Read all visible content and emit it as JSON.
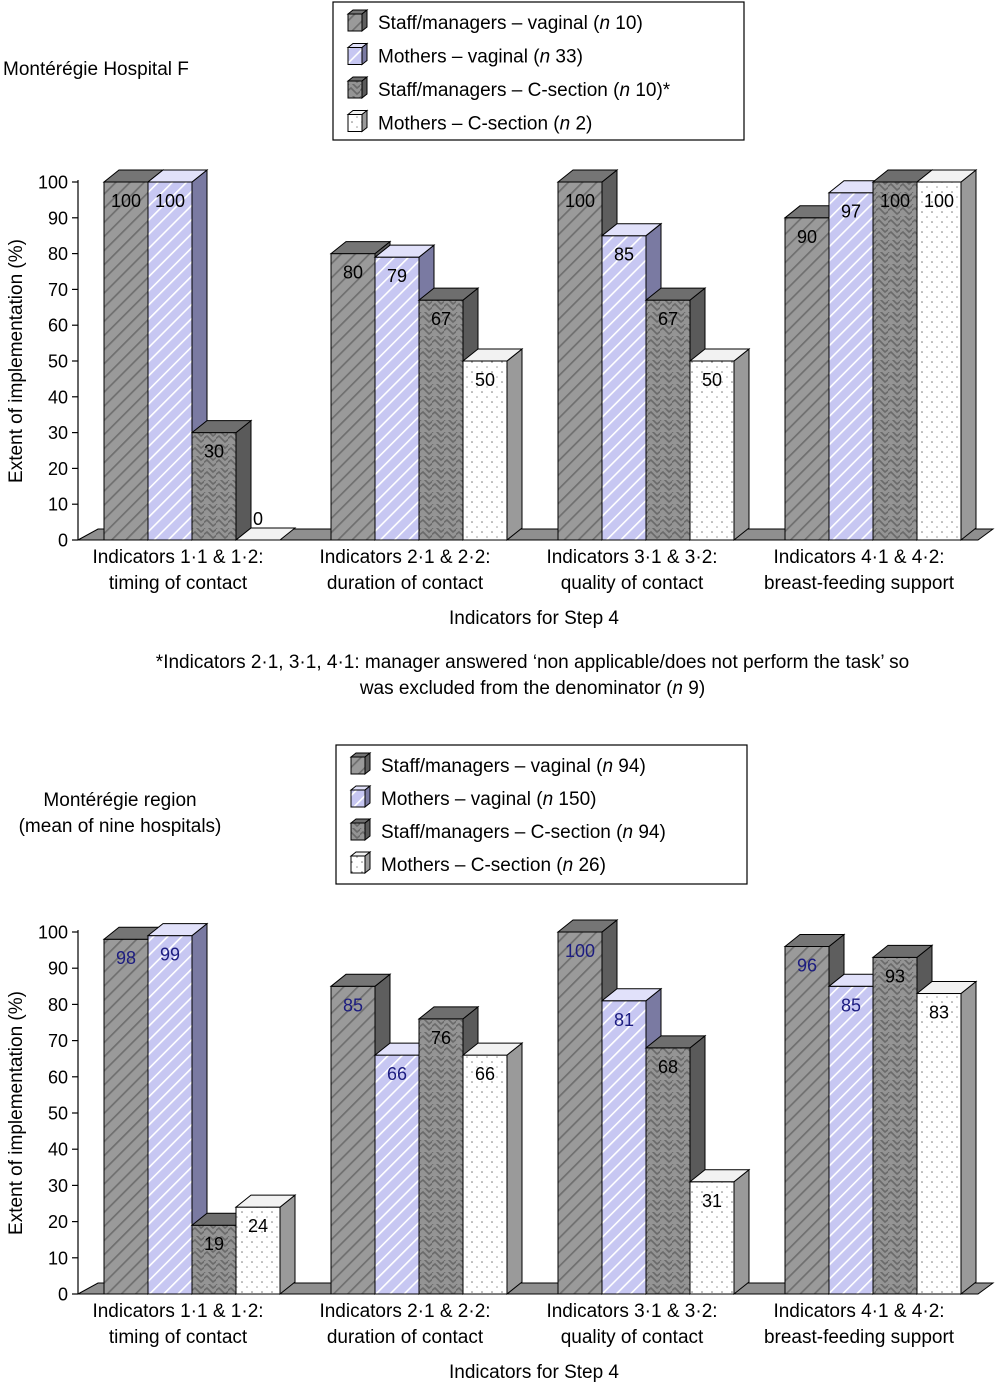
{
  "chart_data": [
    {
      "type": "bar",
      "title": "Montérégie Hospital F",
      "xlabel": "Indicators for Step 4",
      "ylabel": "Extent of implementation (%)",
      "ylim": [
        0,
        100
      ],
      "yticks": [
        "0",
        "10",
        "20",
        "30",
        "40",
        "50",
        "60",
        "70",
        "80",
        "90",
        "100"
      ],
      "categories": [
        [
          "Indicators 1·1 & 1·2:",
          "timing of contact"
        ],
        [
          "Indicators 2·1 & 2·2:",
          "duration of contact"
        ],
        [
          "Indicators 3·1 & 3·2:",
          "quality of contact"
        ],
        [
          "Indicators 4·1 & 4·2:",
          "breast-feeding support"
        ]
      ],
      "legend": [
        [
          "Staff/managers – vaginal (",
          "n",
          " 10)"
        ],
        [
          "Mothers – vaginal (",
          "n",
          " 33)"
        ],
        [
          "Staff/managers – C-section (",
          "n",
          " 10)*"
        ],
        [
          "Mothers – C-section (",
          "n",
          " 2)"
        ]
      ],
      "series": [
        {
          "name": "Staff/managers – vaginal (n 10)",
          "values": [
            100,
            80,
            100,
            90
          ]
        },
        {
          "name": "Mothers – vaginal (n 33)",
          "values": [
            100,
            79,
            85,
            97
          ]
        },
        {
          "name": "Staff/managers – C-section (n 10)*",
          "values": [
            30,
            67,
            67,
            100
          ]
        },
        {
          "name": "Mothers – C-section (n 2)",
          "values": [
            0,
            50,
            50,
            100
          ]
        }
      ],
      "footnote": [
        "*Indicators 2·1, 3·1, 4·1: manager answered ‘non applicable/does not perform the task’ so",
        "was excluded from the denominator (",
        "n",
        " 9)"
      ]
    },
    {
      "type": "bar",
      "title": [
        "Montérégie region",
        "(mean of nine hospitals)"
      ],
      "xlabel": "Indicators for Step 4",
      "ylabel": "Extent of implementation (%)",
      "ylim": [
        0,
        100
      ],
      "yticks": [
        "0",
        "10",
        "20",
        "30",
        "40",
        "50",
        "60",
        "70",
        "80",
        "90",
        "100"
      ],
      "categories": [
        [
          "Indicators 1·1 & 1·2:",
          "timing of contact"
        ],
        [
          "Indicators 2·1 & 2·2:",
          "duration of contact"
        ],
        [
          "Indicators 3·1 & 3·2:",
          "quality of contact"
        ],
        [
          "Indicators 4·1 & 4·2:",
          "breast-feeding support"
        ]
      ],
      "legend": [
        [
          "Staff/managers – vaginal (",
          "n",
          " 94)"
        ],
        [
          "Mothers – vaginal (",
          "n",
          " 150)"
        ],
        [
          "Staff/managers – C-section (",
          "n",
          " 94)"
        ],
        [
          "Mothers – C-section (",
          "n",
          " 26)"
        ]
      ],
      "series": [
        {
          "name": "Staff/managers – vaginal (n 94)",
          "values": [
            98,
            85,
            100,
            96
          ]
        },
        {
          "name": "Mothers – vaginal (n 150)",
          "values": [
            99,
            66,
            81,
            85
          ]
        },
        {
          "name": "Staff/managers – C-section (n 94)",
          "values": [
            19,
            76,
            68,
            93
          ]
        },
        {
          "name": "Mothers – C-section (n 26)",
          "values": [
            24,
            66,
            31,
            83
          ]
        }
      ]
    }
  ],
  "colors": {
    "staff_vaginal": "#9a9a9a",
    "mothers_vaginal": "#c7c7f2",
    "staff_csection": "#8c8c8c",
    "mothers_csection": "#ffffff",
    "label_dark": "#1c1c80",
    "label_black": "#000000"
  }
}
